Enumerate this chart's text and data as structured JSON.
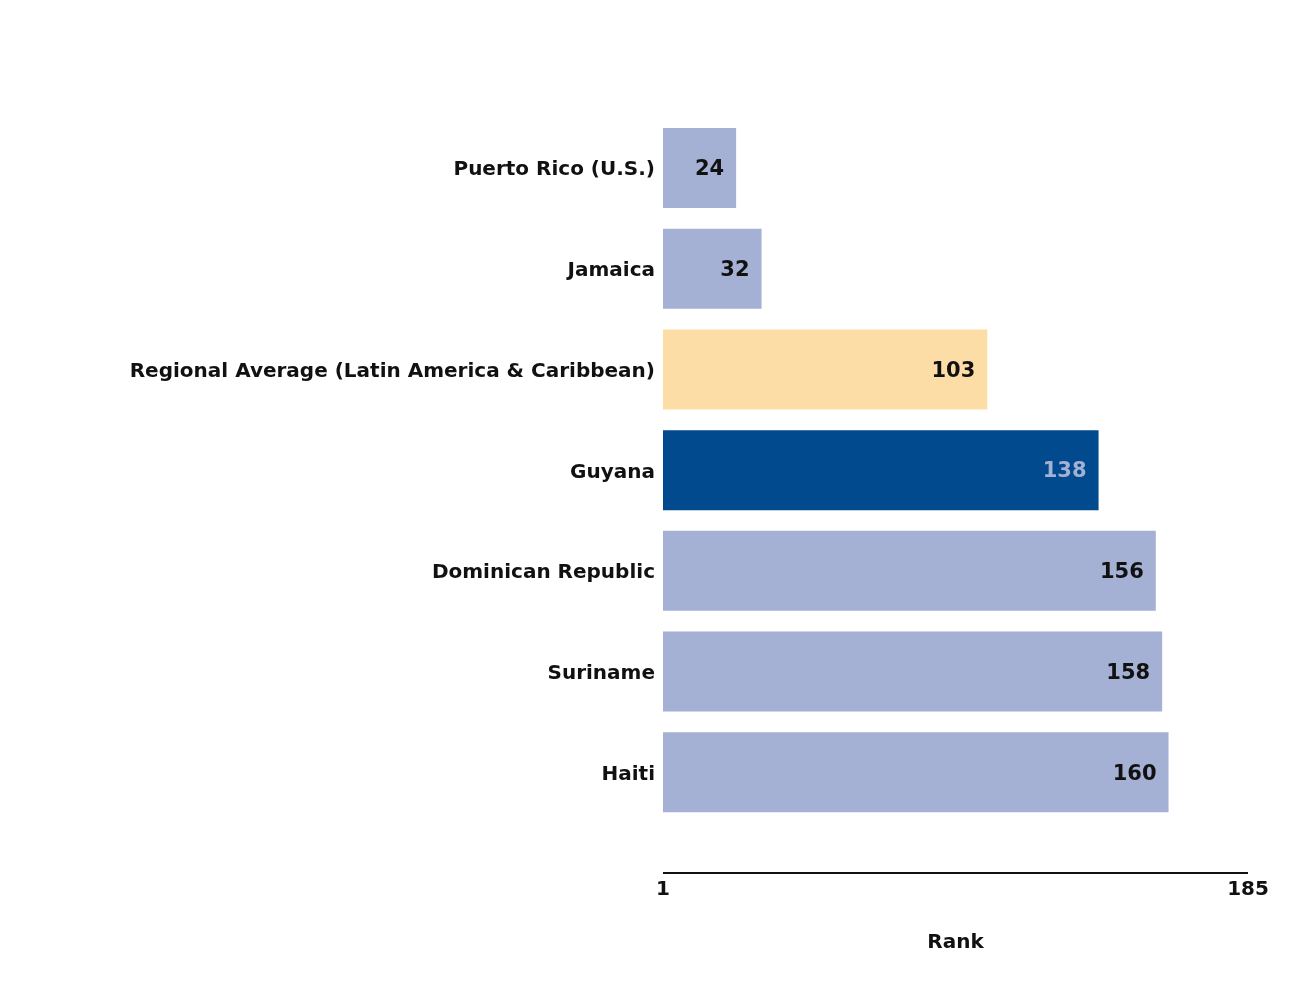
{
  "chart_data": {
    "type": "bar",
    "orientation": "horizontal",
    "xlabel": "Rank",
    "categories": [
      "Puerto Rico (U.S.)",
      "Jamaica",
      "Regional Average (Latin America & Caribbean)",
      "Guyana",
      "Dominican Republic",
      "Suriname",
      "Haiti"
    ],
    "values": [
      24,
      32,
      103,
      138,
      156,
      158,
      160
    ],
    "colors": [
      "#a4b0d4",
      "#a4b0d4",
      "#fddda6",
      "#004a8d",
      "#a4b0d4",
      "#a4b0d4",
      "#a4b0d4"
    ],
    "xlim": [
      1,
      185
    ],
    "xticks": [
      1,
      185
    ],
    "data_labels": true
  }
}
